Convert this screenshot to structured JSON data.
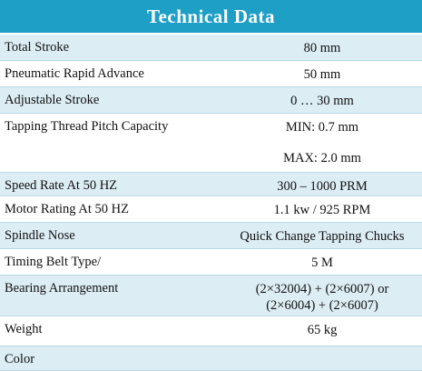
{
  "header": {
    "title": "Technical Data"
  },
  "table": {
    "rows": [
      {
        "label": "Total Stroke",
        "value": [
          "80 mm"
        ]
      },
      {
        "label": "Pneumatic Rapid Advance",
        "value": [
          "50 mm"
        ]
      },
      {
        "label": "Adjustable Stroke",
        "value": [
          "0 … 30 mm"
        ]
      },
      {
        "label": "Tapping Thread Pitch Capacity",
        "value": [
          "MIN: 0.7 mm",
          "MAX: 2.0 mm"
        ]
      },
      {
        "label": "Speed Rate At 50 HZ",
        "value": [
          "300 – 1000 PRM"
        ]
      },
      {
        "label": "Motor Rating At 50 HZ",
        "value": [
          "1.1 kw / 925 RPM"
        ]
      },
      {
        "label": "Spindle Nose",
        "value": [
          "Quick Change Tapping Chucks"
        ]
      },
      {
        "label": "Timing Belt Type/",
        "value": [
          "5 M"
        ]
      },
      {
        "label": "Bearing Arrangement",
        "value": [
          "(2×32004) + (2×6007) or",
          "(2×6004) + (2×6007)"
        ]
      },
      {
        "label": "Weight",
        "value": [
          "65 kg"
        ]
      },
      {
        "label": "Color"
      }
    ]
  }
}
